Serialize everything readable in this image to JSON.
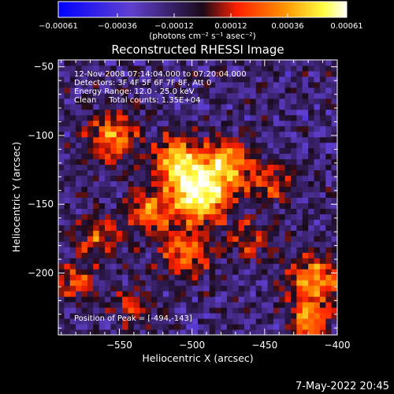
{
  "chart_data": {
    "type": "heatmap",
    "title": "Reconstructed RHESSI Image",
    "xlabel": "Heliocentric X (arcsec)",
    "ylabel": "Heliocentric Y (arcsec)",
    "xlim": [
      -592,
      -400
    ],
    "ylim": [
      -245,
      -45
    ],
    "x_ticks": [
      -550,
      -500,
      -450,
      -400
    ],
    "x_tick_labels": [
      "−550",
      "−500",
      "−450",
      "−400"
    ],
    "y_ticks": [
      -50,
      -100,
      -150,
      -200
    ],
    "y_tick_labels": [
      "−50",
      "−100",
      "−150",
      "−200"
    ],
    "colorbar": {
      "range": [
        -0.00061,
        0.00061
      ],
      "tick_values": [
        -0.00061,
        -0.00036,
        -0.00012,
        0.00012,
        0.00036,
        0.00061
      ],
      "tick_labels": [
        "−0.00061",
        "−0.00036",
        "−0.00012",
        "0.00012",
        "0.00036",
        "0.00061"
      ],
      "unit_label": "(photons cm⁻² s⁻¹ asec⁻²)",
      "colors": [
        "#0000ff",
        "#6040d0",
        "#1a0a1a",
        "#ff2000",
        "#ff9000",
        "#ffff40",
        "#ffffff"
      ]
    },
    "annotations": [
      "12-Nov-2008 07:14:04.000 to 07:20:04.000",
      "Detectors: 3F 4F 5F 6F 7F 8F, Att 0",
      "Energy Range: 12.0 - 25.0 keV",
      "Clean     Total counts: 1.35E+04"
    ],
    "peak_label": "Position of Peak = [-494,-143]",
    "peak": [
      -494,
      -143
    ],
    "sources": [
      {
        "x": -494,
        "y": -143,
        "amp": 1.0,
        "sigma": 14
      },
      {
        "x": -510,
        "y": -118,
        "amp": 0.75,
        "sigma": 12
      },
      {
        "x": -475,
        "y": -120,
        "amp": 0.65,
        "sigma": 12
      },
      {
        "x": -530,
        "y": -155,
        "amp": 0.55,
        "sigma": 11
      },
      {
        "x": -505,
        "y": -185,
        "amp": 0.55,
        "sigma": 12
      },
      {
        "x": -555,
        "y": -100,
        "amp": 0.6,
        "sigma": 12
      },
      {
        "x": -565,
        "y": -175,
        "amp": 0.45,
        "sigma": 10
      },
      {
        "x": -415,
        "y": -205,
        "amp": 0.65,
        "sigma": 13
      },
      {
        "x": -420,
        "y": -235,
        "amp": 0.7,
        "sigma": 8
      },
      {
        "x": -580,
        "y": -205,
        "amp": 0.5,
        "sigma": 9
      },
      {
        "x": -445,
        "y": -135,
        "amp": 0.45,
        "sigma": 10
      },
      {
        "x": -460,
        "y": -175,
        "amp": 0.35,
        "sigma": 10
      },
      {
        "x": -540,
        "y": -225,
        "amp": 0.35,
        "sigma": 10
      }
    ]
  },
  "timestamp": "7-May-2022 20:45"
}
